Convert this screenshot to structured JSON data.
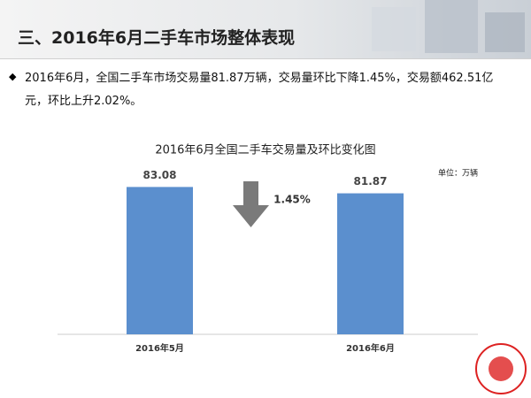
{
  "header": {
    "title": "三、2016年6月二手车市场整体表现"
  },
  "bullet": "2016年6月，全国二手车市场交易量81.87万辆，交易量环比下降1.45%，交易额462.51亿元，环比上升2.02%。",
  "chart_data": {
    "type": "bar",
    "title": "2016年6月全国二手车交易量及环比变化图",
    "unit_label": "单位：万辆",
    "categories": [
      "2016年5月",
      "2016年6月"
    ],
    "values": [
      83.08,
      81.87
    ],
    "color": "#5b8fce",
    "ylim": [
      55,
      85
    ],
    "annotation": "1.45%"
  }
}
